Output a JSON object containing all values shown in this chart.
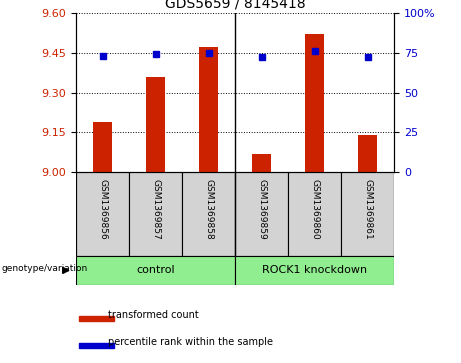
{
  "title": "GDS5659 / 8145418",
  "samples": [
    "GSM1369856",
    "GSM1369857",
    "GSM1369858",
    "GSM1369859",
    "GSM1369860",
    "GSM1369861"
  ],
  "bar_values": [
    9.19,
    9.36,
    9.47,
    9.07,
    9.52,
    9.14
  ],
  "percentile_values": [
    73,
    74,
    75,
    72,
    76,
    72
  ],
  "ylim_left": [
    9.0,
    9.6
  ],
  "ylim_right": [
    0,
    100
  ],
  "yticks_left": [
    9.0,
    9.15,
    9.3,
    9.45,
    9.6
  ],
  "yticks_right": [
    0,
    25,
    50,
    75,
    100
  ],
  "bar_color": "#cc2200",
  "dot_color": "#0000cc",
  "control_label": "control",
  "knockdown_label": "ROCK1 knockdown",
  "group_color": "#90ee90",
  "legend_bar_label": "transformed count",
  "legend_dot_label": "percentile rank within the sample",
  "genotype_label": "genotype/variation",
  "bar_width": 0.35
}
